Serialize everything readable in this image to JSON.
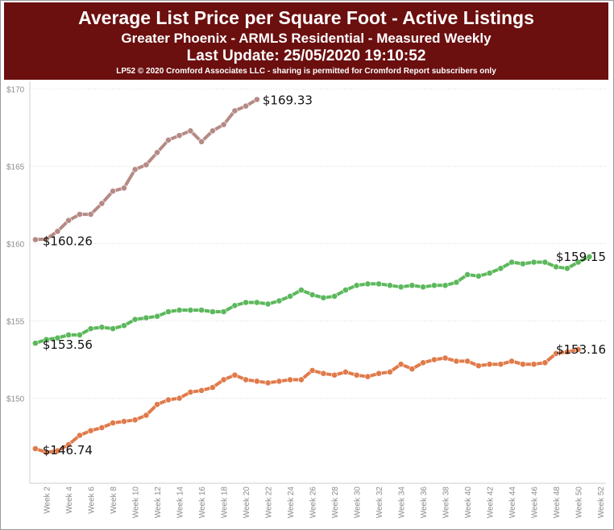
{
  "header": {
    "title": "Average List Price per Square Foot - Active Listings",
    "subtitle": "Greater Phoenix - ARMLS Residential - Measured Weekly",
    "update": "Last Update: 25/05/2020 19:10:52",
    "credit": "LP52 © 2020 Cromford Associates LLC - sharing is permitted for Cromford Report subscribers only",
    "background_color": "#6b0f0f"
  },
  "chart_data": {
    "type": "line",
    "title": "Average List Price per Square Foot - Active Listings",
    "ylim": [
      144.5,
      170.5
    ],
    "yticks": [
      150,
      155,
      160,
      165,
      170
    ],
    "ytick_labels": [
      "$150",
      "$155",
      "$160",
      "$165",
      "$170"
    ],
    "xlim": [
      0.5,
      52.5
    ],
    "xticks": [
      2,
      4,
      6,
      8,
      10,
      12,
      14,
      16,
      18,
      20,
      22,
      24,
      26,
      28,
      30,
      32,
      34,
      36,
      38,
      40,
      42,
      44,
      46,
      48,
      50,
      52
    ],
    "xtick_labels": [
      "Week 2",
      "Week 4",
      "Week 6",
      "Week 8",
      "Week 10",
      "Week 12",
      "Week 14",
      "Week 16",
      "Week 18",
      "Week 20",
      "Week 22",
      "Week 24",
      "Week 26",
      "Week 28",
      "Week 30",
      "Week 32",
      "Week 34",
      "Week 36",
      "Week 38",
      "Week 40",
      "Week 42",
      "Week 44",
      "Week 46",
      "Week 48",
      "Week 50",
      "Week 52"
    ],
    "grid": true,
    "series": [
      {
        "color": "#b58a85",
        "start_week": 1,
        "values": [
          160.26,
          160.3,
          160.8,
          161.5,
          161.9,
          161.9,
          162.6,
          163.4,
          163.6,
          164.8,
          165.1,
          165.9,
          166.7,
          167.0,
          167.3,
          166.6,
          167.3,
          167.7,
          168.6,
          168.9,
          169.33
        ],
        "labels": [
          {
            "week": 1,
            "text": "$160.26"
          },
          {
            "week": 21,
            "text": "$169.33"
          }
        ]
      },
      {
        "color": "#5cb85c",
        "start_week": 1,
        "values": [
          153.56,
          153.8,
          153.9,
          154.1,
          154.1,
          154.5,
          154.6,
          154.5,
          154.7,
          155.1,
          155.2,
          155.3,
          155.6,
          155.7,
          155.7,
          155.7,
          155.6,
          155.6,
          156.0,
          156.2,
          156.2,
          156.1,
          156.3,
          156.6,
          157.0,
          156.7,
          156.5,
          156.6,
          157.0,
          157.3,
          157.4,
          157.4,
          157.3,
          157.2,
          157.3,
          157.2,
          157.3,
          157.3,
          157.5,
          158.0,
          157.9,
          158.1,
          158.4,
          158.8,
          158.7,
          158.8,
          158.8,
          158.5,
          158.4,
          158.8,
          159.15
        ],
        "labels": [
          {
            "week": 1,
            "text": "$153.56"
          },
          {
            "week": 51,
            "text": "$159.15"
          }
        ]
      },
      {
        "color": "#e07a4a",
        "start_week": 1,
        "values": [
          146.74,
          146.5,
          146.6,
          147.0,
          147.6,
          147.9,
          148.1,
          148.4,
          148.5,
          148.6,
          148.9,
          149.6,
          149.9,
          150.0,
          150.4,
          150.5,
          150.7,
          151.2,
          151.5,
          151.2,
          151.1,
          151.0,
          151.1,
          151.2,
          151.2,
          151.8,
          151.6,
          151.5,
          151.7,
          151.5,
          151.4,
          151.6,
          151.7,
          152.2,
          151.9,
          152.3,
          152.5,
          152.6,
          152.4,
          152.4,
          152.1,
          152.2,
          152.2,
          152.4,
          152.2,
          152.2,
          152.3,
          152.9,
          153.0,
          153.16
        ],
        "labels": [
          {
            "week": 1,
            "text": "$146.74"
          },
          {
            "week": 50,
            "text": "$153.16"
          }
        ]
      }
    ]
  }
}
